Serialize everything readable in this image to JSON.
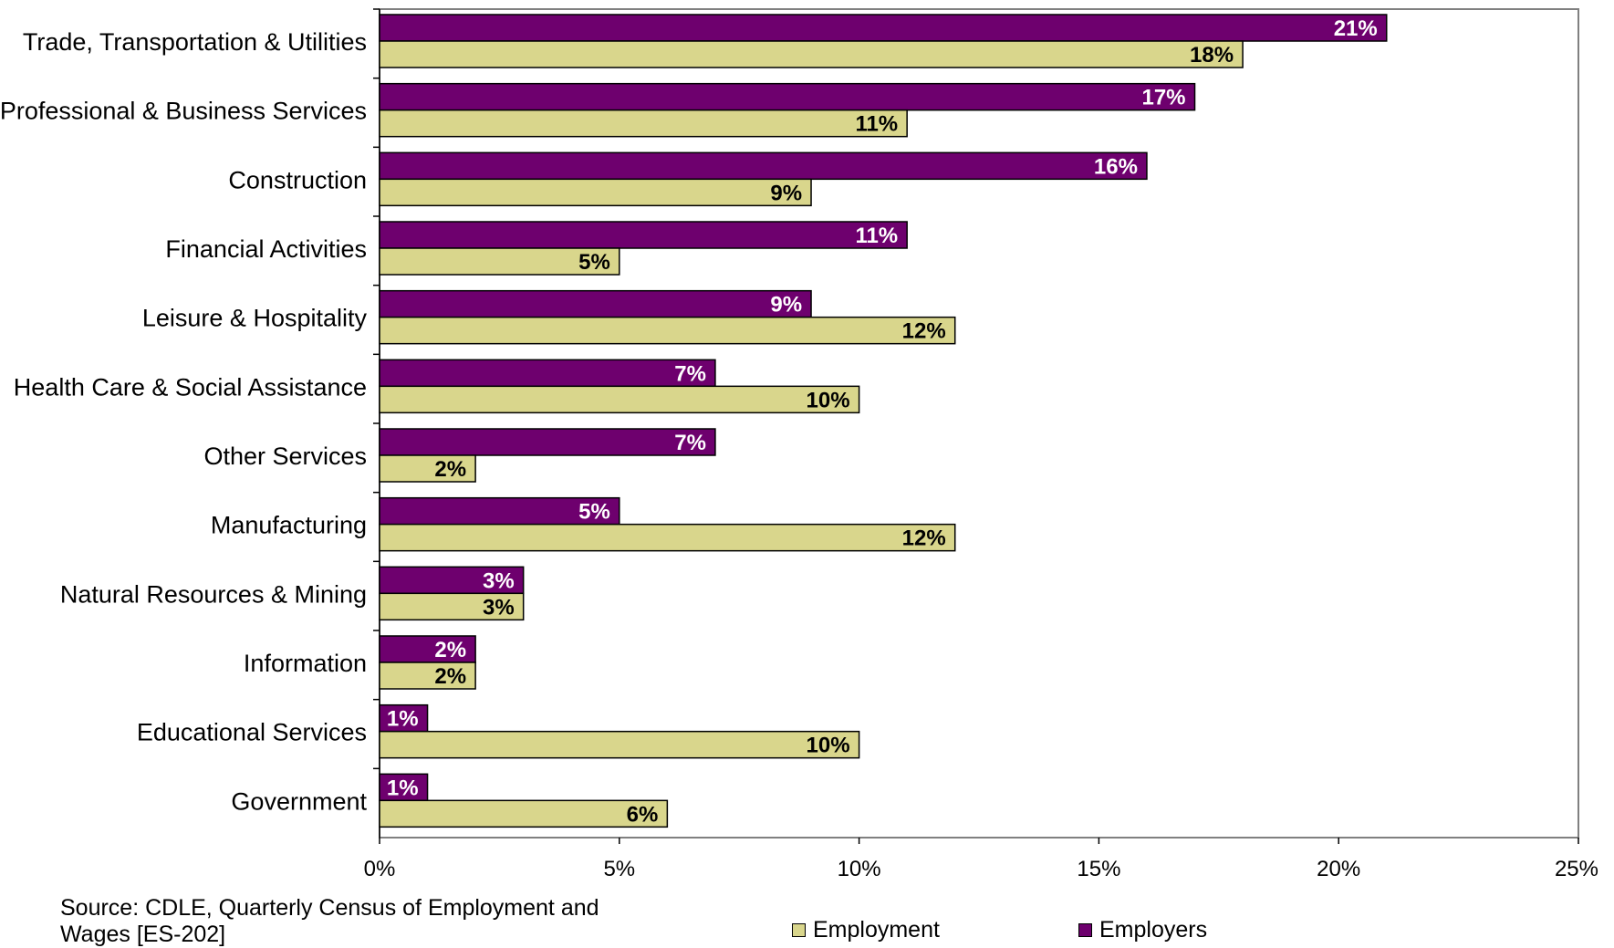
{
  "source_note": "Source: CDLE, Quarterly Census of Employment and Wages [ES-202]",
  "colors": {
    "employment": "#D9D68C",
    "employers": "#6E006E",
    "employment_label": "#000000",
    "employers_label": "#FFFFFF",
    "axis": "#808080"
  },
  "chart_data": {
    "type": "bar",
    "orientation": "horizontal",
    "categories": [
      "Trade, Transportation & Utilities",
      "Professional & Business Services",
      "Construction",
      "Financial Activities",
      "Leisure & Hospitality",
      "Health Care & Social Assistance",
      "Other Services",
      "Manufacturing",
      "Natural Resources & Mining",
      "Information",
      "Educational Services",
      "Government"
    ],
    "series": [
      {
        "name": "Employers",
        "values": [
          21,
          17,
          16,
          11,
          9,
          7,
          7,
          5,
          3,
          2,
          1,
          1
        ],
        "labels": [
          "21%",
          "17%",
          "16%",
          "11%",
          "9%",
          "7%",
          "7%",
          "5%",
          "3%",
          "2%",
          "1%",
          "1%"
        ]
      },
      {
        "name": "Employment",
        "values": [
          18,
          11,
          9,
          5,
          12,
          10,
          2,
          12,
          3,
          2,
          10,
          6
        ],
        "labels": [
          "18%",
          "11%",
          "9%",
          "5%",
          "12%",
          "10%",
          "2%",
          "12%",
          "3%",
          "2%",
          "10%",
          "6%"
        ]
      }
    ],
    "xlim": [
      0,
      25
    ],
    "xticks": [
      0,
      5,
      10,
      15,
      20,
      25
    ],
    "xtick_labels": [
      "0%",
      "5%",
      "10%",
      "15%",
      "20%",
      "25%"
    ],
    "legend": {
      "placement": "bottom",
      "entries": [
        "Employment",
        "Employers"
      ]
    },
    "grid": false
  }
}
